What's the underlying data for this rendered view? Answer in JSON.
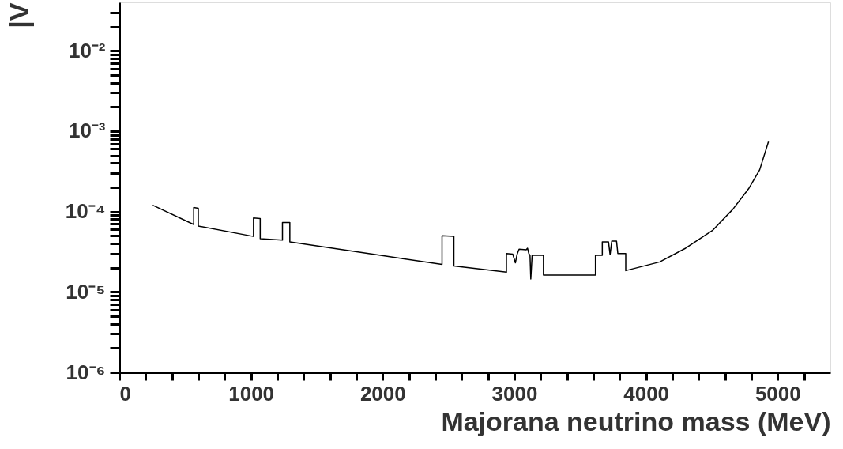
{
  "chart_data": {
    "type": "line",
    "xlabel": "Majorana neutrino mass  (MeV)",
    "ylabel": "|V",
    "log": "y",
    "grid": false,
    "marker": "none",
    "line_style": "solid",
    "xlim": [
      0,
      5400
    ],
    "xticks": [
      0,
      {
        "value": 200,
        "label": null
      },
      {
        "value": 400,
        "label": null
      },
      {
        "value": 600,
        "label": null
      },
      {
        "value": 800,
        "label": null
      },
      1000,
      {
        "value": 1200,
        "label": null
      },
      {
        "value": 1400,
        "label": null
      },
      {
        "value": 1600,
        "label": null
      },
      {
        "value": 1800,
        "label": null
      },
      2000,
      {
        "value": 2200,
        "label": null
      },
      {
        "value": 2400,
        "label": null
      },
      {
        "value": 2600,
        "label": null
      },
      {
        "value": 2800,
        "label": null
      },
      3000,
      {
        "value": 3200,
        "label": null
      },
      {
        "value": 3400,
        "label": null
      },
      {
        "value": 3600,
        "label": null
      },
      {
        "value": 3800,
        "label": null
      },
      4000,
      {
        "value": 4200,
        "label": null
      },
      {
        "value": 4400,
        "label": null
      },
      {
        "value": 4600,
        "label": null
      },
      {
        "value": 4800,
        "label": null
      },
      5000,
      {
        "value": 5200,
        "label": null
      }
    ],
    "ylim": [
      1e-06,
      0.04
    ],
    "yticks": [
      {
        "value": 1e-06,
        "label": "10⁻⁶"
      },
      {
        "value": 2e-06,
        "label": null
      },
      {
        "value": 3e-06,
        "label": null
      },
      {
        "value": 4e-06,
        "label": null
      },
      {
        "value": 5e-06,
        "label": null
      },
      {
        "value": 6e-06,
        "label": null
      },
      {
        "value": 7e-06,
        "label": null
      },
      {
        "value": 8e-06,
        "label": null
      },
      {
        "value": 9e-06,
        "label": null
      },
      {
        "value": 1e-05,
        "label": "10⁻⁵"
      },
      {
        "value": 2e-05,
        "label": null
      },
      {
        "value": 3e-05,
        "label": null
      },
      {
        "value": 4e-05,
        "label": null
      },
      {
        "value": 5e-05,
        "label": null
      },
      {
        "value": 6e-05,
        "label": null
      },
      {
        "value": 7e-05,
        "label": null
      },
      {
        "value": 8e-05,
        "label": null
      },
      {
        "value": 9e-05,
        "label": null
      },
      {
        "value": 0.0001,
        "label": "10⁻⁴"
      },
      {
        "value": 0.0002,
        "label": null
      },
      {
        "value": 0.0003,
        "label": null
      },
      {
        "value": 0.0004,
        "label": null
      },
      {
        "value": 0.0005,
        "label": null
      },
      {
        "value": 0.0006,
        "label": null
      },
      {
        "value": 0.0007,
        "label": null
      },
      {
        "value": 0.0008,
        "label": null
      },
      {
        "value": 0.0009,
        "label": null
      },
      {
        "value": 0.001,
        "label": "10⁻³"
      },
      {
        "value": 0.002,
        "label": null
      },
      {
        "value": 0.003,
        "label": null
      },
      {
        "value": 0.004,
        "label": null
      },
      {
        "value": 0.005,
        "label": null
      },
      {
        "value": 0.006,
        "label": null
      },
      {
        "value": 0.007,
        "label": null
      },
      {
        "value": 0.008,
        "label": null
      },
      {
        "value": 0.009,
        "label": null
      },
      {
        "value": 0.01,
        "label": "10⁻²"
      },
      {
        "value": 0.02,
        "label": null
      },
      {
        "value": 0.03,
        "label": null
      }
    ],
    "series": [
      {
        "color": "#000000",
        "x": [
          254,
          565,
          565,
          600,
          600,
          1019,
          1019,
          1070,
          1070,
          1239,
          1239,
          1295,
          1295,
          2015,
          2451,
          2451,
          2541,
          2541,
          2940,
          2940,
          2988,
          3008,
          3020,
          3036,
          3090,
          3100,
          3110,
          3119,
          3125,
          3135,
          3221,
          3221,
          3616,
          3616,
          3668,
          3668,
          3715,
          3727,
          3740,
          3776,
          3786,
          3846,
          3846,
          4104,
          4301,
          4504,
          4660,
          4779,
          4863,
          4930
        ],
        "values": [
          0.00012,
          6.9e-05,
          0.000112,
          0.00011,
          6.6e-05,
          4.9e-05,
          8.3e-05,
          8.2e-05,
          4.6e-05,
          4.4e-05,
          7.3e-05,
          7.3e-05,
          4.2e-05,
          2.8e-05,
          2.2e-05,
          5e-05,
          4.9e-05,
          2.1e-05,
          1.76e-05,
          3e-05,
          2.95e-05,
          2.3e-05,
          2.9e-05,
          3.4e-05,
          3.35e-05,
          3.5e-05,
          3e-05,
          2.85e-05,
          1.45e-05,
          2.85e-05,
          2.85e-05,
          1.62e-05,
          1.62e-05,
          2.85e-05,
          2.85e-05,
          4.2e-05,
          4.2e-05,
          2.9e-05,
          4.3e-05,
          4.3e-05,
          3e-05,
          3e-05,
          1.84e-05,
          2.36e-05,
          3.5e-05,
          5.8e-05,
          0.000107,
          0.000192,
          0.00033,
          0.00074
        ]
      }
    ]
  }
}
